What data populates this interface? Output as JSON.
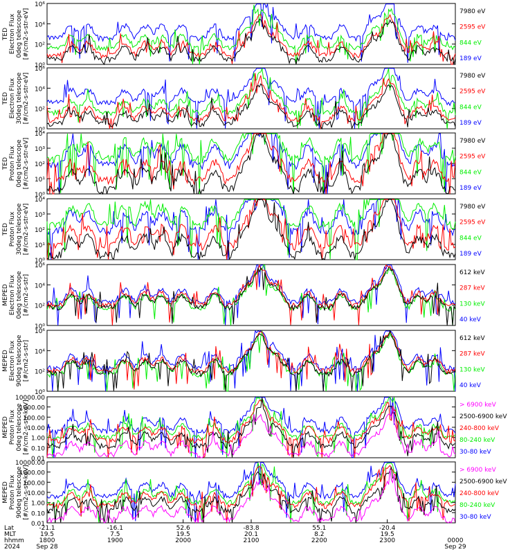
{
  "colors": {
    "black": "#000000",
    "red": "#ff0000",
    "green": "#00ee00",
    "blue": "#0000ff",
    "magenta": "#ff00ff"
  },
  "chart_data": [
    {
      "type": "line",
      "ylabel": [
        "TED",
        "Electron Flux",
        "0deg telescope",
        "[#/cm2-s-str-eV]"
      ],
      "log": true,
      "ylim": [
        1,
        1000000
      ],
      "ticks": [
        {
          "v": 1,
          "l": "10⁰"
        },
        {
          "v": 100,
          "l": "10²"
        },
        {
          "v": 10000,
          "l": "10⁴"
        },
        {
          "v": 1000000,
          "l": "10⁶"
        }
      ],
      "series": [
        {
          "name": "7980 eV",
          "color": "black"
        },
        {
          "name": "2595 eV",
          "color": "red"
        },
        {
          "name": "844 eV",
          "color": "green"
        },
        {
          "name": "189 eV",
          "color": "blue"
        }
      ],
      "base": {
        "black": 3,
        "red": 8,
        "green": 40,
        "blue": 400
      }
    },
    {
      "type": "line",
      "ylabel": [
        "TED",
        "Electron Flux",
        "30deg telescope",
        "[#/cm2-s-str-eV]"
      ],
      "log": true,
      "ylim": [
        1,
        1000000
      ],
      "ticks": [
        {
          "v": 1,
          "l": "10⁰"
        },
        {
          "v": 100,
          "l": "10²"
        },
        {
          "v": 10000,
          "l": "10⁴"
        },
        {
          "v": 1000000,
          "l": "10⁶"
        }
      ],
      "series": [
        {
          "name": "7980 eV",
          "color": "black"
        },
        {
          "name": "2595 eV",
          "color": "red"
        },
        {
          "name": "844 eV",
          "color": "green"
        },
        {
          "name": "189 eV",
          "color": "blue"
        }
      ],
      "base": {
        "black": 3,
        "red": 8,
        "green": 40,
        "blue": 400
      }
    },
    {
      "type": "line",
      "ylabel": [
        "TED",
        "Proton Flux",
        "0deg telescope",
        "[#/cm2-s-str-eV]"
      ],
      "log": true,
      "ylim": [
        1,
        10000
      ],
      "ticks": [
        {
          "v": 1,
          "l": "10⁰"
        },
        {
          "v": 10,
          "l": "10¹"
        },
        {
          "v": 100,
          "l": "10²"
        },
        {
          "v": 1000,
          "l": "10³"
        },
        {
          "v": 10000,
          "l": "10⁴"
        }
      ],
      "series": [
        {
          "name": "7980 eV",
          "color": "black"
        },
        {
          "name": "2595 eV",
          "color": "red"
        },
        {
          "name": "844 eV",
          "color": "green"
        },
        {
          "name": "189 eV",
          "color": "blue"
        }
      ],
      "base": {
        "black": 2,
        "red": 8,
        "green": 200,
        "blue": 80
      }
    },
    {
      "type": "line",
      "ylabel": [
        "TED",
        "Proton Flux",
        "30deg telescope",
        "[#/cm2-s-str-eV]"
      ],
      "log": true,
      "ylim": [
        1,
        10000
      ],
      "ticks": [
        {
          "v": 1,
          "l": "10⁰"
        },
        {
          "v": 10,
          "l": "10¹"
        },
        {
          "v": 100,
          "l": "10²"
        },
        {
          "v": 1000,
          "l": "10³"
        },
        {
          "v": 10000,
          "l": "10⁴"
        }
      ],
      "series": [
        {
          "name": "7980 eV",
          "color": "black"
        },
        {
          "name": "2595 eV",
          "color": "red"
        },
        {
          "name": "844 eV",
          "color": "green"
        },
        {
          "name": "189 eV",
          "color": "blue"
        }
      ],
      "base": {
        "black": 2,
        "red": 8,
        "green": 200,
        "blue": 80
      }
    },
    {
      "type": "line",
      "ylabel": [
        "MEPED",
        "Electron Flux",
        "0deg telescope",
        "[#/cm2-s-str]"
      ],
      "log": true,
      "ylim": [
        1,
        1000000
      ],
      "ticks": [
        {
          "v": 1,
          "l": "10⁰"
        },
        {
          "v": 100,
          "l": "10²"
        },
        {
          "v": 10000,
          "l": "10⁴"
        },
        {
          "v": 1000000,
          "l": "10⁶"
        }
      ],
      "series": [
        {
          "name": "612 keV",
          "color": "black"
        },
        {
          "name": "287 keV",
          "color": "red"
        },
        {
          "name": "130 keV",
          "color": "green"
        },
        {
          "name": "40 keV",
          "color": "blue"
        }
      ],
      "base": {
        "black": 60,
        "red": 100,
        "green": 50,
        "blue": 200
      }
    },
    {
      "type": "line",
      "ylabel": [
        "MEPED",
        "Electron Flux",
        "90deg telescope",
        "[#/cm2-s-str]"
      ],
      "log": true,
      "ylim": [
        1,
        1000000
      ],
      "ticks": [
        {
          "v": 1,
          "l": "10⁰"
        },
        {
          "v": 100,
          "l": "10²"
        },
        {
          "v": 10000,
          "l": "10⁴"
        },
        {
          "v": 1000000,
          "l": "10⁶"
        }
      ],
      "series": [
        {
          "name": "612 keV",
          "color": "black"
        },
        {
          "name": "287 keV",
          "color": "red"
        },
        {
          "name": "130 keV",
          "color": "green"
        },
        {
          "name": "40 keV",
          "color": "blue"
        }
      ],
      "base": {
        "black": 60,
        "red": 100,
        "green": 50,
        "blue": 200
      }
    },
    {
      "type": "line",
      "ylabel": [
        "MEPED",
        "Proton Flux",
        "0deg telescope",
        "[#/cm2-s-str-keV]"
      ],
      "log": true,
      "ylim": [
        0.01,
        10000
      ],
      "ticks": [
        {
          "v": 0.01,
          "l": "0.01"
        },
        {
          "v": 0.1,
          "l": "0.10"
        },
        {
          "v": 1,
          "l": "1.00"
        },
        {
          "v": 10,
          "l": "10.00"
        },
        {
          "v": 100,
          "l": "100.00"
        },
        {
          "v": 1000,
          "l": "1000.00"
        },
        {
          "v": 10000,
          "l": "10000.00"
        }
      ],
      "series": [
        {
          "name": "> 6900 keV",
          "color": "magenta"
        },
        {
          "name": "2500-6900 keV",
          "color": "black"
        },
        {
          "name": "240-800 keV",
          "color": "red"
        },
        {
          "name": "80-240 keV",
          "color": "green"
        },
        {
          "name": "30-80 keV",
          "color": "blue"
        }
      ],
      "base": {
        "magenta": 0.02,
        "black": 0.15,
        "red": 0.5,
        "green": 1,
        "blue": 4
      }
    },
    {
      "type": "line",
      "ylabel": [
        "MEPED",
        "Proton Flux",
        "90deg telescope",
        "[#/cm2-s-str-keV]"
      ],
      "log": true,
      "ylim": [
        0.01,
        10000
      ],
      "ticks": [
        {
          "v": 0.01,
          "l": "0.01"
        },
        {
          "v": 0.1,
          "l": "0.10"
        },
        {
          "v": 1,
          "l": "1.00"
        },
        {
          "v": 10,
          "l": "10.00"
        },
        {
          "v": 100,
          "l": "100.00"
        },
        {
          "v": 1000,
          "l": "1000.00"
        },
        {
          "v": 10000,
          "l": "10000.00"
        }
      ],
      "series": [
        {
          "name": "> 6900 keV",
          "color": "magenta"
        },
        {
          "name": "2500-6900 keV",
          "color": "black"
        },
        {
          "name": "240-800 keV",
          "color": "red"
        },
        {
          "name": "80-240 keV",
          "color": "green"
        },
        {
          "name": "30-80 keV",
          "color": "blue"
        }
      ],
      "base": {
        "magenta": 0.02,
        "black": 0.15,
        "red": 0.5,
        "green": 1,
        "blue": 4
      }
    }
  ],
  "x_axis": {
    "row_labels": [
      "Lat",
      "MLT",
      "hhmm",
      "2024"
    ],
    "ticks": [
      {
        "lat": "-21.1",
        "mlt": "19.5",
        "hhmm": "1800",
        "date": "Sep 28"
      },
      {
        "lat": "-16.1",
        "mlt": "7.5",
        "hhmm": "1900",
        "date": ""
      },
      {
        "lat": "52.6",
        "mlt": "19.5",
        "hhmm": "2000",
        "date": ""
      },
      {
        "lat": "-83.8",
        "mlt": "20.1",
        "hhmm": "2100",
        "date": ""
      },
      {
        "lat": "55.1",
        "mlt": "8.2",
        "hhmm": "2200",
        "date": ""
      },
      {
        "lat": "-20.4",
        "mlt": "19.5",
        "hhmm": "2300",
        "date": ""
      },
      {
        "lat": "",
        "mlt": "",
        "hhmm": "0000",
        "date": "Sep 29"
      }
    ]
  }
}
